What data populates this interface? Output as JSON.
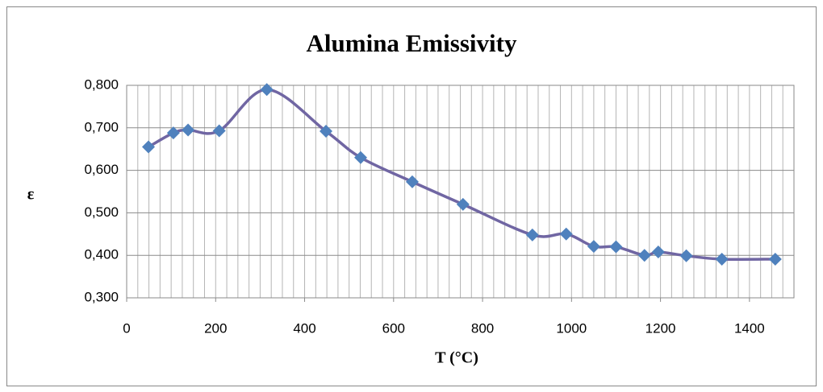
{
  "chart_data": {
    "type": "scatter",
    "title": "Alumina Emissivity",
    "x_label": "T (°C)",
    "y_label": "ε",
    "x": [
      49,
      105,
      138,
      208,
      315,
      448,
      526,
      642,
      756,
      912,
      988,
      1050,
      1100,
      1164,
      1195,
      1258,
      1338,
      1458
    ],
    "series": [
      {
        "color": "#4f81bd",
        "line_color": "#7066a3",
        "values": [
          0.655,
          0.688,
          0.695,
          0.693,
          0.79,
          0.692,
          0.63,
          0.573,
          0.52,
          0.448,
          0.45,
          0.421,
          0.42,
          0.4,
          0.408,
          0.399,
          0.391,
          0.391
        ]
      }
    ],
    "smooth": true,
    "xlim": [
      0,
      1500
    ],
    "xticks": [
      0,
      200,
      400,
      600,
      800,
      1000,
      1200,
      1400
    ],
    "ylim": [
      0.3,
      0.8
    ],
    "yticks": [
      {
        "value": 0.3,
        "label": "0,300"
      },
      {
        "value": 0.4,
        "label": "0,400"
      },
      {
        "value": 0.5,
        "label": "0,500"
      },
      {
        "value": 0.6,
        "label": "0,600"
      },
      {
        "value": 0.7,
        "label": "0,700"
      },
      {
        "value": 0.8,
        "label": "0,800"
      }
    ],
    "grid": true,
    "x_minor_grid_step": 25
  }
}
